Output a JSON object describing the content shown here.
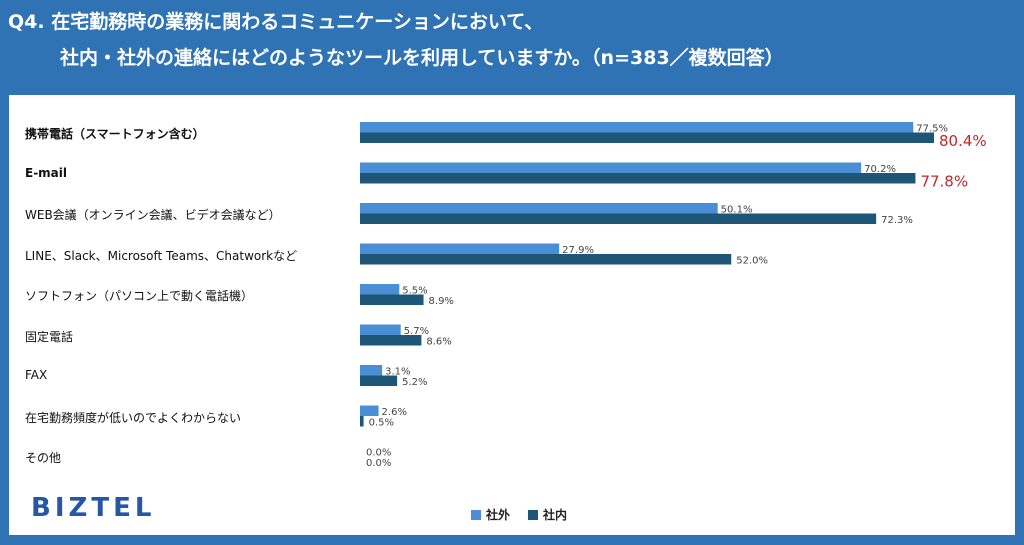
{
  "title": {
    "line1": "Q4. 在宅勤務時の業務に関わるコミュニケーションにおいて、",
    "line2": "社内・社外の連絡にはどのようなツールを利用していますか。（n=383／複数回答）"
  },
  "logo": "BIZTEL",
  "colors": {
    "shagai": "#4a8fd6",
    "shanai": "#1d5677",
    "highlight": "#c0282d"
  },
  "chart_data": {
    "type": "bar",
    "orientation": "horizontal",
    "categories": [
      "携帯電話（スマートフォン含む）",
      "E-mail",
      "WEB会議（オンライン会議、ビデオ会議など）",
      "LINE、Slack、Microsoft Teams、Chatworkなど",
      "ソフトフォン（パソコン上で動く電話機）",
      "固定電話",
      "FAX",
      "在宅勤務頻度が低いのでよくわからない",
      "その他"
    ],
    "series": [
      {
        "name": "社外",
        "values": [
          77.5,
          70.2,
          50.1,
          27.9,
          5.5,
          5.7,
          3.1,
          2.6,
          0.0
        ],
        "labels": [
          "77.5%",
          "70.2%",
          "50.1%",
          "27.9%",
          "5.5%",
          "5.7%",
          "3.1%",
          "2.6%",
          "0.0%"
        ]
      },
      {
        "name": "社内",
        "values": [
          80.4,
          77.8,
          72.3,
          52.0,
          8.9,
          8.6,
          5.2,
          0.5,
          0.0
        ],
        "labels": [
          "80.4%",
          "77.8%",
          "72.3%",
          "52.0%",
          "8.9%",
          "8.6%",
          "5.2%",
          "0.5%",
          "0.0%"
        ]
      }
    ],
    "highlighted": [
      {
        "series": "社内",
        "category": "携帯電話（スマートフォン含む）"
      },
      {
        "series": "社内",
        "category": "E-mail"
      }
    ],
    "xlim": [
      0,
      100
    ],
    "grid": false,
    "legend": "bottom-center"
  }
}
